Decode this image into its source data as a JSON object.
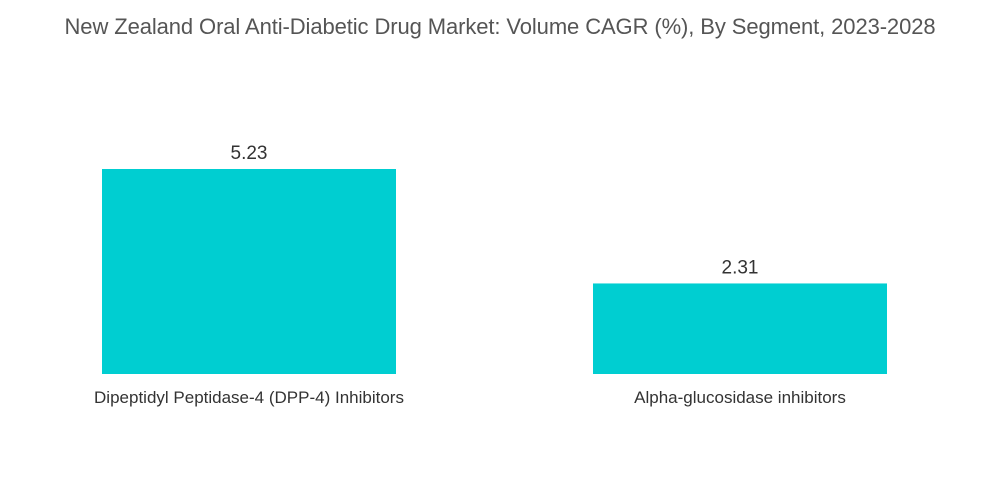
{
  "chart_data": {
    "type": "bar",
    "title": "New Zealand Oral Anti-Diabetic Drug Market: Volume CAGR (%), By Segment, 2023-2028",
    "categories": [
      "Dipeptidyl Peptidase-4 (DPP-4) Inhibitors",
      "Alpha-glucosidase inhibitors"
    ],
    "values": [
      5.23,
      2.31
    ],
    "value_labels": [
      "5.23",
      "2.31"
    ],
    "xlabel": "",
    "ylabel": "",
    "ylim": [
      0,
      5.23
    ],
    "grid": false,
    "legend": "none",
    "bar_color": "#00CED1"
  }
}
